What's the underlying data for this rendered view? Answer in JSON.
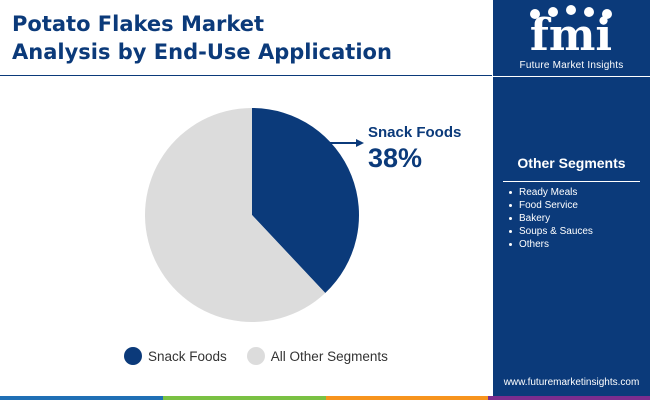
{
  "title": {
    "line1": "Potato Flakes Market",
    "line2": "Analysis by End-Use Application"
  },
  "chart_data": {
    "type": "pie",
    "categories": [
      "Snack Foods",
      "All Other Segments"
    ],
    "values": [
      38,
      62
    ],
    "colors": [
      "#0b3a7a",
      "#dcdcdc"
    ],
    "annotation": {
      "label": "Snack Foods",
      "value": "38%"
    }
  },
  "legend": {
    "items": [
      "Snack Foods",
      "All Other Segments"
    ]
  },
  "brand": {
    "logo_text": "fmi",
    "name": "Future Market Insights",
    "website": "www.futuremarketinsights.com",
    "color": "#0b3a7a"
  },
  "other_segments": {
    "title": "Other Segments",
    "items": [
      "Ready Meals",
      "Food Service",
      "Bakery",
      "Soups & Sauces",
      "Others"
    ]
  },
  "accent_bar_colors": [
    "#1f6fb5",
    "#7ac143",
    "#f7941d",
    "#7b2d8e"
  ]
}
